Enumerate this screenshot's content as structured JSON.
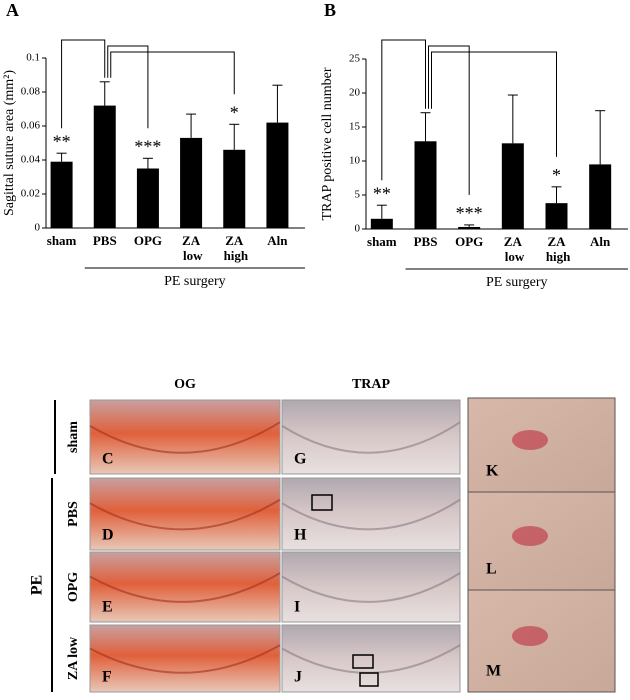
{
  "chart_data": [
    {
      "type": "bar",
      "panel": "A",
      "ylabel": "Sagittal suture area (mm²)",
      "categories": [
        "sham",
        "PBS",
        "OPG",
        "ZA low",
        "ZA high",
        "Aln"
      ],
      "values": [
        0.039,
        0.072,
        0.035,
        0.053,
        0.046,
        0.062
      ],
      "errors": [
        0.005,
        0.014,
        0.006,
        0.014,
        0.015,
        0.022
      ],
      "annotations": [
        "**",
        null,
        "***",
        null,
        "*",
        null
      ],
      "group_label": "PE surgery",
      "color": "#000000",
      "ylim": [
        0,
        0.1
      ],
      "yticks": [
        0,
        0.02,
        0.04,
        0.06,
        0.08,
        0.1
      ]
    },
    {
      "type": "bar",
      "panel": "B",
      "ylabel": "TRAP positive cell number",
      "categories": [
        "sham",
        "PBS",
        "OPG",
        "ZA low",
        "ZA high",
        "Aln"
      ],
      "values": [
        1.5,
        12.9,
        0.3,
        12.6,
        3.8,
        9.5
      ],
      "errors": [
        2,
        4.2,
        0.3,
        7.1,
        2.4,
        7.9
      ],
      "annotations": [
        "**",
        null,
        "***",
        null,
        "*",
        null
      ],
      "group_label": "PE surgery",
      "color": "#000000",
      "ylim": [
        0,
        25
      ],
      "yticks": [
        0,
        5,
        10,
        15,
        20,
        25
      ]
    }
  ],
  "figure": {
    "column_headers": [
      "OG",
      "TRAP"
    ],
    "row_group": "PE",
    "rows": [
      {
        "label": "sham",
        "panels": [
          "C",
          "G"
        ]
      },
      {
        "label": "PBS",
        "panels": [
          "D",
          "H"
        ]
      },
      {
        "label": "OPG",
        "panels": [
          "E",
          "I"
        ]
      },
      {
        "label": "ZA low",
        "panels": [
          "F",
          "J"
        ]
      }
    ],
    "zoom_panels": [
      "K",
      "L",
      "M"
    ]
  }
}
